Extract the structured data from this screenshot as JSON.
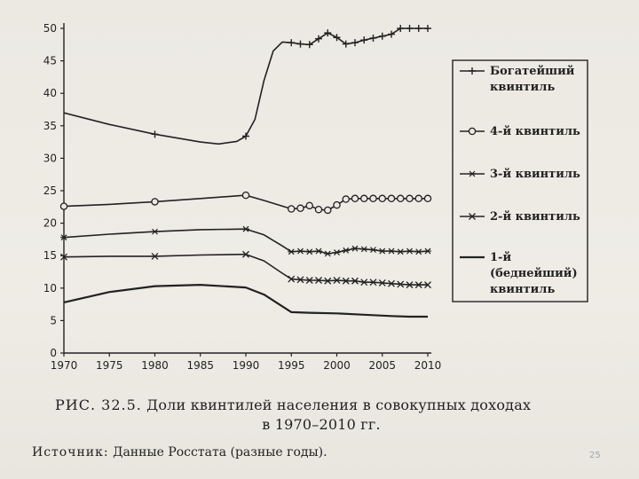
{
  "chart_data": {
    "type": "line",
    "title": "",
    "xlabel": "",
    "ylabel": "",
    "xlim": [
      1970,
      2010
    ],
    "ylim": [
      0,
      50
    ],
    "x_ticks": [
      1970,
      1975,
      1980,
      1985,
      1990,
      1995,
      2000,
      2005,
      2010
    ],
    "y_ticks": [
      0,
      5,
      10,
      15,
      20,
      25,
      30,
      35,
      40,
      45,
      50
    ],
    "legend_placement": "right",
    "series": [
      {
        "name": "Богатейший квинтиль",
        "marker": "plus",
        "points": [
          [
            1970,
            37
          ],
          [
            1975,
            35.2
          ],
          [
            1980,
            33.7
          ],
          [
            1985,
            32.5
          ],
          [
            1987,
            32.2
          ],
          [
            1989,
            32.6
          ],
          [
            1990,
            33.4
          ],
          [
            1991,
            36
          ],
          [
            1992,
            42
          ],
          [
            1993,
            46.5
          ],
          [
            1994,
            47.9
          ],
          [
            1995,
            47.8
          ],
          [
            1996,
            47.6
          ],
          [
            1997,
            47.5
          ],
          [
            1998,
            48.4
          ],
          [
            1999,
            49.3
          ],
          [
            2000,
            48.6
          ],
          [
            2001,
            47.6
          ],
          [
            2002,
            47.8
          ],
          [
            2003,
            48.2
          ],
          [
            2004,
            48.5
          ],
          [
            2005,
            48.8
          ],
          [
            2006,
            49.1
          ],
          [
            2007,
            50.0
          ],
          [
            2008,
            50.0
          ],
          [
            2009,
            50.0
          ],
          [
            2010,
            50.0
          ]
        ],
        "marked_x": [
          1980,
          1990,
          1995,
          1996,
          1997,
          1998,
          1999,
          2000,
          2001,
          2002,
          2003,
          2004,
          2005,
          2006,
          2007,
          2008,
          2009,
          2010
        ]
      },
      {
        "name": "4-й квинтиль",
        "marker": "circle",
        "points": [
          [
            1970,
            22.6
          ],
          [
            1975,
            22.9
          ],
          [
            1980,
            23.3
          ],
          [
            1985,
            23.8
          ],
          [
            1990,
            24.3
          ],
          [
            1992,
            23.5
          ],
          [
            1995,
            22.2
          ],
          [
            1996,
            22.3
          ],
          [
            1997,
            22.7
          ],
          [
            1998,
            22.1
          ],
          [
            1999,
            22.0
          ],
          [
            2000,
            22.8
          ],
          [
            2001,
            23.7
          ],
          [
            2002,
            23.8
          ],
          [
            2003,
            23.8
          ],
          [
            2004,
            23.8
          ],
          [
            2005,
            23.8
          ],
          [
            2006,
            23.8
          ],
          [
            2007,
            23.8
          ],
          [
            2008,
            23.8
          ],
          [
            2009,
            23.8
          ],
          [
            2010,
            23.8
          ]
        ],
        "marked_x": [
          1970,
          1980,
          1990,
          1995,
          1996,
          1997,
          1998,
          1999,
          2000,
          2001,
          2002,
          2003,
          2004,
          2005,
          2006,
          2007,
          2008,
          2009,
          2010
        ]
      },
      {
        "name": "3-й квинтиль",
        "marker": "asterisk",
        "points": [
          [
            1970,
            17.8
          ],
          [
            1975,
            18.3
          ],
          [
            1980,
            18.7
          ],
          [
            1985,
            19.0
          ],
          [
            1990,
            19.1
          ],
          [
            1992,
            18.2
          ],
          [
            1994,
            16.5
          ],
          [
            1995,
            15.6
          ],
          [
            1996,
            15.7
          ],
          [
            1997,
            15.6
          ],
          [
            1998,
            15.7
          ],
          [
            1999,
            15.3
          ],
          [
            2000,
            15.5
          ],
          [
            2001,
            15.8
          ],
          [
            2002,
            16.1
          ],
          [
            2003,
            16.0
          ],
          [
            2004,
            15.9
          ],
          [
            2005,
            15.7
          ],
          [
            2006,
            15.7
          ],
          [
            2007,
            15.6
          ],
          [
            2008,
            15.7
          ],
          [
            2009,
            15.6
          ],
          [
            2010,
            15.7
          ]
        ],
        "marked_x": [
          1970,
          1980,
          1990,
          1995,
          1996,
          1997,
          1998,
          1999,
          2000,
          2001,
          2002,
          2003,
          2004,
          2005,
          2006,
          2007,
          2008,
          2009,
          2010
        ]
      },
      {
        "name": "2-й квинтиль",
        "marker": "cross",
        "points": [
          [
            1970,
            14.8
          ],
          [
            1975,
            14.9
          ],
          [
            1980,
            14.9
          ],
          [
            1985,
            15.1
          ],
          [
            1990,
            15.2
          ],
          [
            1992,
            14.2
          ],
          [
            1994,
            12.3
          ],
          [
            1995,
            11.4
          ],
          [
            1996,
            11.3
          ],
          [
            1997,
            11.2
          ],
          [
            1998,
            11.2
          ],
          [
            1999,
            11.1
          ],
          [
            2000,
            11.2
          ],
          [
            2001,
            11.1
          ],
          [
            2002,
            11.1
          ],
          [
            2003,
            10.9
          ],
          [
            2004,
            10.9
          ],
          [
            2005,
            10.8
          ],
          [
            2006,
            10.7
          ],
          [
            2007,
            10.6
          ],
          [
            2008,
            10.5
          ],
          [
            2009,
            10.5
          ],
          [
            2010,
            10.5
          ]
        ],
        "marked_x": [
          1970,
          1980,
          1990,
          1995,
          1996,
          1997,
          1998,
          1999,
          2000,
          2001,
          2002,
          2003,
          2004,
          2005,
          2006,
          2007,
          2008,
          2009,
          2010
        ]
      },
      {
        "name": "1-й (беднейший) квинтиль",
        "marker": "none",
        "points": [
          [
            1970,
            7.8
          ],
          [
            1975,
            9.4
          ],
          [
            1980,
            10.3
          ],
          [
            1985,
            10.5
          ],
          [
            1990,
            10.1
          ],
          [
            1992,
            9.0
          ],
          [
            1994,
            7.2
          ],
          [
            1995,
            6.3
          ],
          [
            1997,
            6.2
          ],
          [
            2000,
            6.1
          ],
          [
            2003,
            5.9
          ],
          [
            2006,
            5.7
          ],
          [
            2008,
            5.6
          ],
          [
            2010,
            5.6
          ]
        ],
        "marked_x": []
      }
    ]
  },
  "legend": {
    "items": [
      {
        "line1": "Богатейший",
        "line2": "квинтиль",
        "line3": ""
      },
      {
        "line1": "4-й квинтиль",
        "line2": "",
        "line3": ""
      },
      {
        "line1": "3-й квинтиль",
        "line2": "",
        "line3": ""
      },
      {
        "line1": "2-й квинтиль",
        "line2": "",
        "line3": ""
      },
      {
        "line1": "1-й",
        "line2": "(беднейший)",
        "line3": "квинтиль"
      }
    ]
  },
  "caption": {
    "label": "РИС. 32.5.",
    "line1": "Доли квинтилей населения в совокупных доходах",
    "line2": "в 1970–2010 гг."
  },
  "source": {
    "label": "Источник:",
    "text": "Данные Росстата (разные годы)."
  },
  "slide_number": "25",
  "colors": {
    "ink": "#222222",
    "paper": "#ece9e3"
  }
}
